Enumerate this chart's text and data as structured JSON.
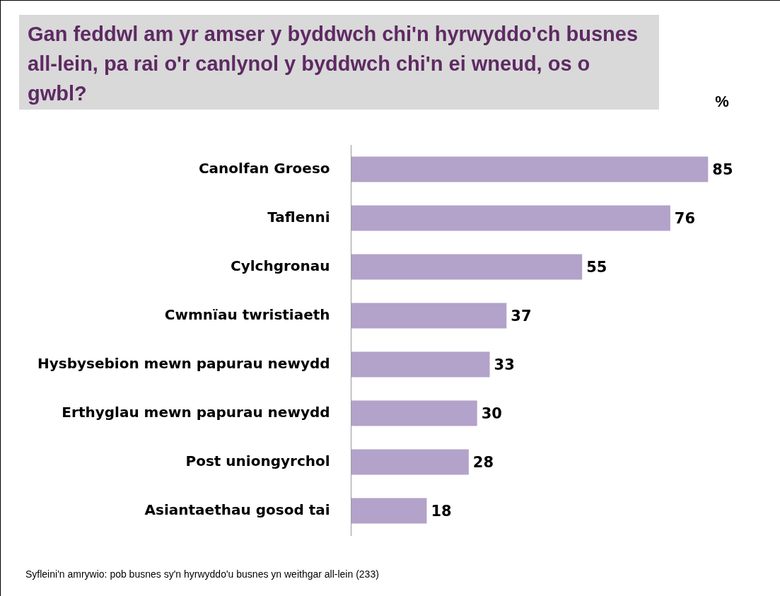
{
  "chart_data": {
    "type": "bar",
    "orientation": "horizontal",
    "title": "Gan feddwl am yr amser y byddwch chi'n hyrwyddo'ch busnes all-lein, pa rai o'r canlynol y byddwch chi'n ei wneud, os o gwbl?",
    "xlabel": "%",
    "categories": [
      "Canolfan Groeso",
      "Taflenni",
      "Cylchgronau",
      "Cwmnïau twristiaeth",
      "Hysbysebion mewn papurau newydd",
      "Erthyglau mewn papurau newydd",
      "Post uniongyrchol",
      "Asiantaethau gosod tai"
    ],
    "values": [
      85,
      76,
      55,
      37,
      33,
      30,
      28,
      18
    ],
    "color": "#b3a2c9",
    "data_labels": true,
    "legend": false,
    "annotations": [
      "Syfleini'n amrywio: pob busnes sy'n hyrwyddo'u busnes yn weithgar all-lein (233)"
    ]
  }
}
